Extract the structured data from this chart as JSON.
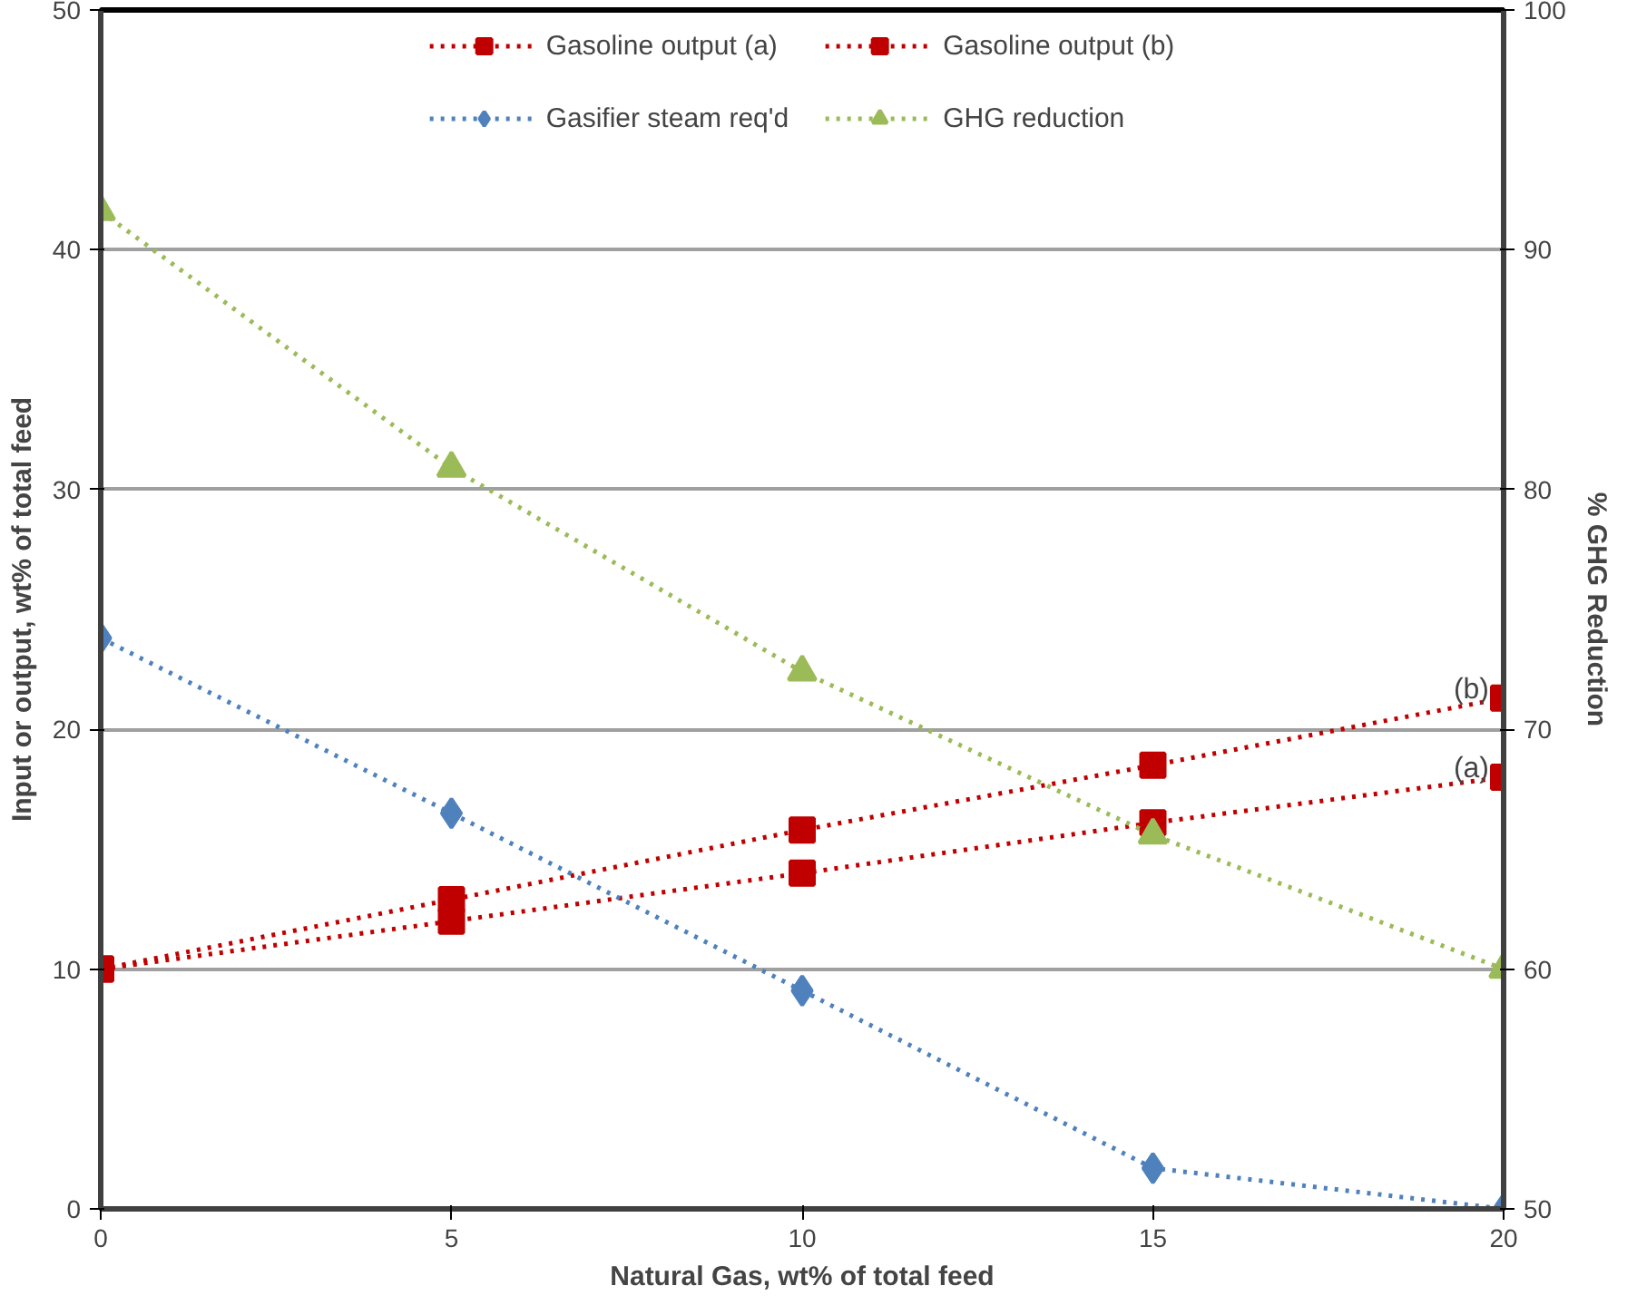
{
  "chart_data": {
    "type": "line",
    "x": [
      0,
      5,
      10,
      15,
      20
    ],
    "xlabel": "Natural Gas, wt% of total feed",
    "ylabel": "Input or output, wt% of total feed",
    "y2label": "% GHG Reduction",
    "xlim": [
      0,
      20
    ],
    "xticks": [
      0,
      5,
      10,
      15,
      20
    ],
    "ylim": [
      0,
      50
    ],
    "yticks": [
      0,
      10,
      20,
      30,
      40,
      50
    ],
    "y2lim": [
      50,
      100
    ],
    "y2ticks": [
      50,
      60,
      70,
      80,
      90,
      100
    ],
    "series": [
      {
        "name": "Gasoline output (a)",
        "color": "#c00000",
        "marker": "square",
        "values": [
          10,
          12,
          14,
          16.1,
          18
        ]
      },
      {
        "name": "Gasoline output (b)",
        "color": "#c00000",
        "marker": "square",
        "values": [
          10,
          12.9,
          15.8,
          18.5,
          21.3
        ]
      },
      {
        "name": "Gasifier steam req'd",
        "color": "#4f81bd",
        "marker": "diamond",
        "values": [
          23.8,
          16.5,
          9.1,
          1.7,
          0
        ]
      },
      {
        "name": "GHG reduction",
        "color": "#9bbb59",
        "marker": "triangle",
        "axis": "y2",
        "values": [
          91.6,
          80.9,
          72.4,
          65.6,
          60
        ]
      }
    ],
    "annotations": [
      {
        "text": "(b)",
        "x": 20,
        "y": 21.3
      },
      {
        "text": "(a)",
        "x": 20,
        "y": 18
      }
    ],
    "line_style": "dotted",
    "grid": "y",
    "legend": "top"
  }
}
